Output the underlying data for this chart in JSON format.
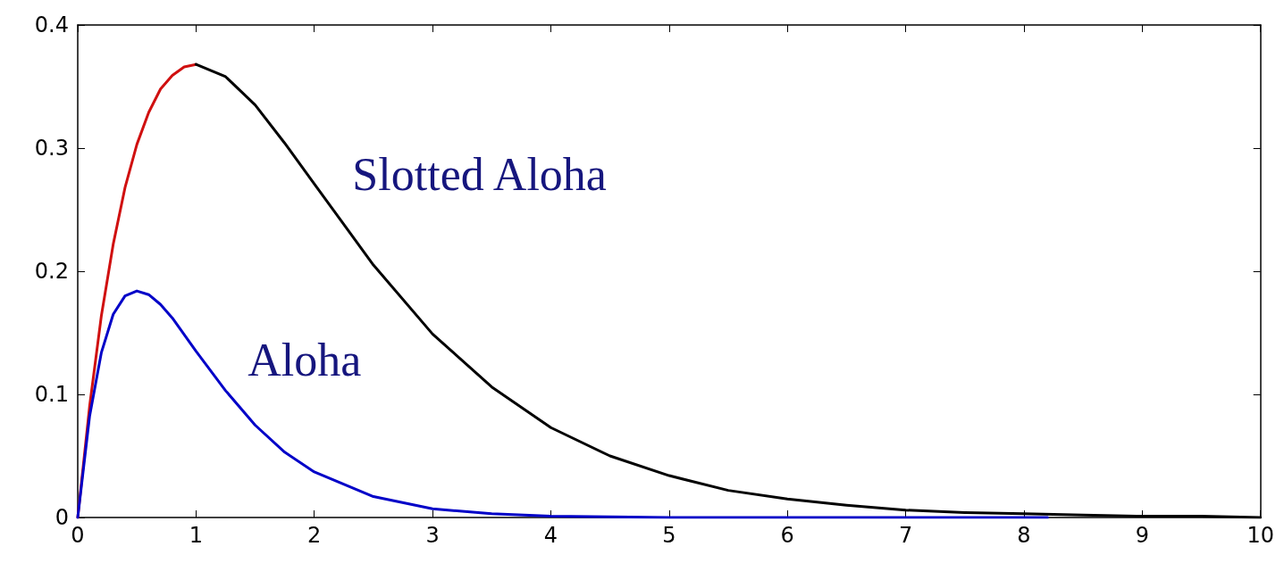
{
  "chart_data": {
    "type": "line",
    "xlim": [
      0,
      10
    ],
    "ylim": [
      0,
      0.4
    ],
    "xticks": [
      0,
      1,
      2,
      3,
      4,
      5,
      6,
      7,
      8,
      9,
      10
    ],
    "yticks": [
      0,
      0.1,
      0.2,
      0.3,
      0.4
    ],
    "grid": false,
    "legend": false,
    "marker": "none",
    "line_style": "solid",
    "series": [
      {
        "color": "#d01010",
        "x": [
          0,
          0.1,
          0.2,
          0.3,
          0.4,
          0.5,
          0.6,
          0.7,
          0.8,
          0.9,
          1.0
        ],
        "values": [
          0,
          0.09,
          0.164,
          0.222,
          0.268,
          0.303,
          0.329,
          0.348,
          0.359,
          0.366,
          0.368
        ]
      },
      {
        "name": "Slotted Aloha",
        "color": "#000000",
        "x": [
          1,
          1.25,
          1.5,
          1.75,
          2,
          2.5,
          3,
          3.5,
          4,
          4.5,
          5,
          5.5,
          6,
          6.5,
          7,
          7.5,
          8,
          8.5,
          9,
          9.5,
          10
        ],
        "values": [
          0.368,
          0.358,
          0.335,
          0.304,
          0.271,
          0.205,
          0.149,
          0.106,
          0.073,
          0.05,
          0.034,
          0.022,
          0.015,
          0.01,
          0.006,
          0.004,
          0.003,
          0.002,
          0.001,
          0.001,
          0
        ]
      },
      {
        "name": "Aloha",
        "color": "#0000c8",
        "x": [
          0,
          0.1,
          0.2,
          0.3,
          0.4,
          0.5,
          0.6,
          0.7,
          0.8,
          1,
          1.25,
          1.5,
          1.75,
          2,
          2.5,
          3,
          3.5,
          4,
          5,
          6,
          7,
          8,
          8.2
        ],
        "values": [
          0,
          0.082,
          0.134,
          0.165,
          0.18,
          0.184,
          0.181,
          0.173,
          0.162,
          0.135,
          0.103,
          0.075,
          0.053,
          0.037,
          0.017,
          0.007,
          0.003,
          0.001,
          0,
          0,
          0,
          0,
          0
        ]
      }
    ]
  }
}
